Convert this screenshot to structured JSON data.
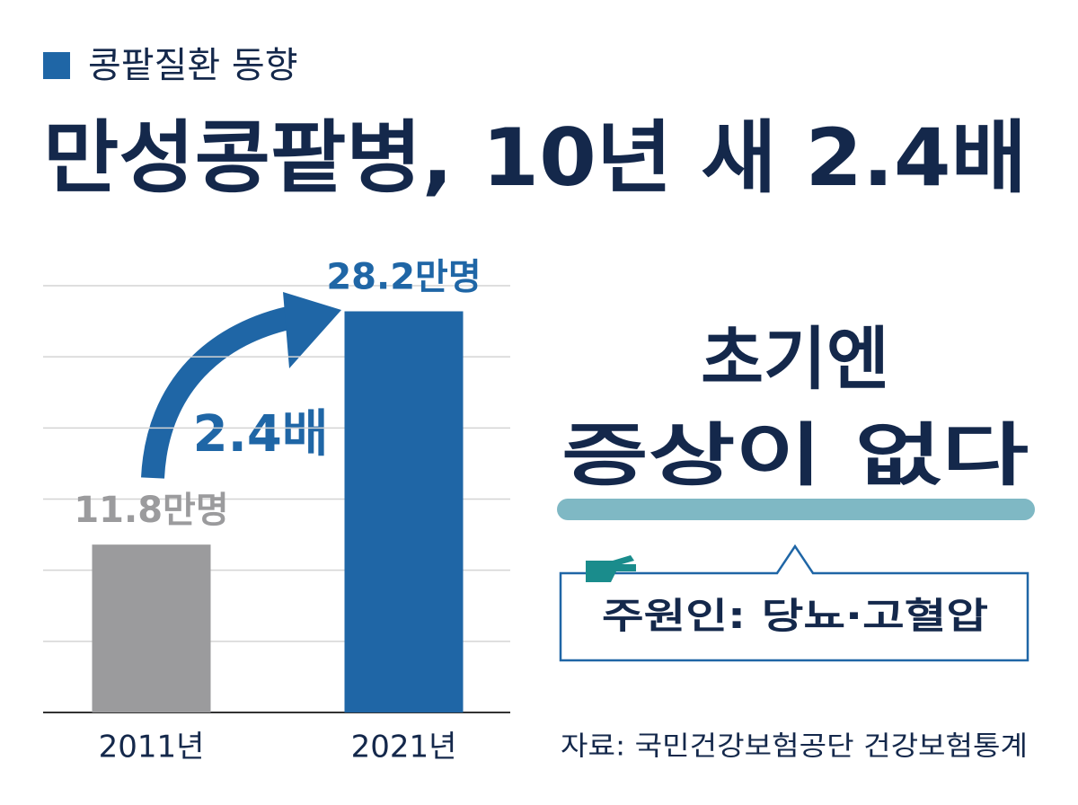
{
  "chart_data": {
    "type": "bar",
    "subtitle": "콩팥질환 동향",
    "title": "만성콩팥병, 10년 새 2.4배",
    "categories": [
      "2011년",
      "2021년"
    ],
    "values": [
      11.8,
      28.2
    ],
    "value_labels": [
      "11.8만명",
      "28.2만명"
    ],
    "colors": [
      "#9b9b9d",
      "#1f66a6"
    ],
    "ylim": [
      0,
      30
    ],
    "yticks": [
      0,
      5,
      10,
      15,
      20,
      25,
      30
    ],
    "grid": true,
    "growth_label": "2.4배",
    "callout_lines": [
      "초기엔",
      "증상이 없다"
    ],
    "cause": "주원인: 당뇨·고혈압",
    "source": "자료: 국민건강보험공단 건강보험통계"
  }
}
